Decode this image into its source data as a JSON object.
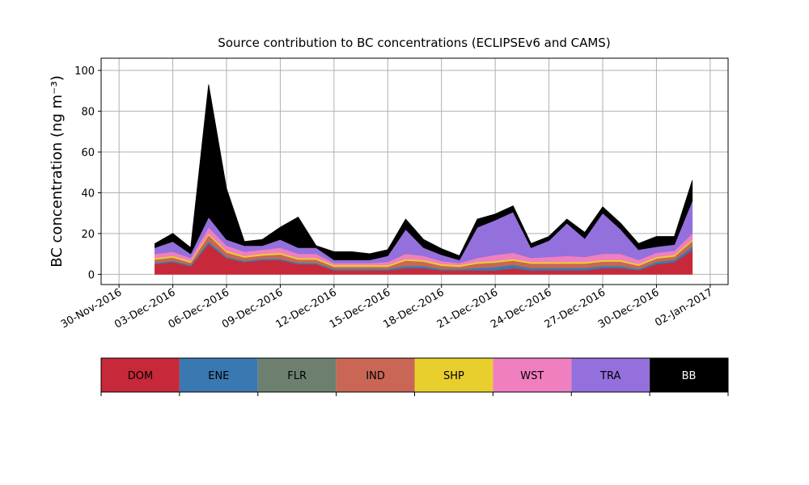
{
  "chart_data": {
    "type": "stacked_area",
    "title": "Source contribution to BC concentrations (ECLIPSEv6 and CAMS)",
    "y_label": "BC concentration (ng m⁻³)",
    "x": [
      "02-Dec-2016",
      "03-Dec-2016",
      "04-Dec-2016",
      "05-Dec-2016",
      "06-Dec-2016",
      "07-Dec-2016",
      "08-Dec-2016",
      "09-Dec-2016",
      "10-Dec-2016",
      "11-Dec-2016",
      "12-Dec-2016",
      "13-Dec-2016",
      "14-Dec-2016",
      "15-Dec-2016",
      "16-Dec-2016",
      "17-Dec-2016",
      "18-Dec-2016",
      "19-Dec-2016",
      "20-Dec-2016",
      "21-Dec-2016",
      "22-Dec-2016",
      "23-Dec-2016",
      "24-Dec-2016",
      "25-Dec-2016",
      "26-Dec-2016",
      "27-Dec-2016",
      "28-Dec-2016",
      "29-Dec-2016",
      "30-Dec-2016",
      "31-Dec-2016",
      "01-Jan-2017"
    ],
    "series": [
      {
        "name": "DOM",
        "color": "#c7293a",
        "values": [
          5,
          6,
          4,
          15,
          8,
          6,
          7,
          7,
          5,
          5,
          2,
          2,
          2,
          2,
          3,
          3,
          2,
          2,
          2,
          2,
          3,
          2,
          2,
          2,
          2,
          3,
          3,
          2,
          5,
          6,
          12
        ]
      },
      {
        "name": "ENE",
        "color": "#3a78b1",
        "values": [
          0.5,
          0.5,
          0.5,
          1,
          0.5,
          0.5,
          0.5,
          0.5,
          0.5,
          0.5,
          0.5,
          0.5,
          0.5,
          0.5,
          1,
          1,
          0.5,
          0.5,
          1,
          1.5,
          1.5,
          1,
          1,
          1,
          1,
          1,
          1,
          0.5,
          1,
          1,
          1.5
        ]
      },
      {
        "name": "FLR",
        "color": "#6d8070",
        "values": [
          0.3,
          0.3,
          0.3,
          0.3,
          0.3,
          0.3,
          0.3,
          0.3,
          0.3,
          0.3,
          0.3,
          0.3,
          0.3,
          0.3,
          0.3,
          0.3,
          0.3,
          0.3,
          0.3,
          0.3,
          0.3,
          0.3,
          0.3,
          0.3,
          0.3,
          0.3,
          0.3,
          0.3,
          0.3,
          0.3,
          0.3
        ]
      },
      {
        "name": "IND",
        "color": "#c96656",
        "values": [
          1.5,
          1.5,
          1,
          3,
          2,
          1.5,
          1.5,
          2,
          1.5,
          1.5,
          1,
          1,
          1,
          1,
          2.5,
          2,
          1.5,
          1,
          2,
          2,
          2,
          2,
          2,
          2,
          2,
          2,
          2,
          1.5,
          1.5,
          1.5,
          2.5
        ]
      },
      {
        "name": "SHP",
        "color": "#e8cf2e",
        "values": [
          0.8,
          0.8,
          0.8,
          0.8,
          0.8,
          0.8,
          0.8,
          0.8,
          0.8,
          0.8,
          0.8,
          0.8,
          0.8,
          0.8,
          0.8,
          0.8,
          0.8,
          0.8,
          0.8,
          0.8,
          0.8,
          0.8,
          0.8,
          0.8,
          0.8,
          0.8,
          0.8,
          0.8,
          0.8,
          0.8,
          0.8
        ]
      },
      {
        "name": "WST",
        "color": "#f07fbf",
        "values": [
          2,
          2,
          1.5,
          3,
          2.5,
          2,
          2,
          2.5,
          2,
          2,
          1,
          1,
          1,
          1.5,
          2.5,
          2,
          1.5,
          1,
          2,
          3,
          3,
          2,
          2.5,
          3,
          2.5,
          3,
          3,
          2,
          2,
          2,
          3
        ]
      },
      {
        "name": "TRA",
        "color": "#9470dc",
        "values": [
          3,
          5,
          2,
          5,
          3,
          3,
          2,
          4,
          3,
          3,
          1.5,
          1.5,
          1.5,
          3,
          12,
          4,
          3,
          1.5,
          15,
          17,
          20,
          5,
          8,
          16,
          9,
          20,
          12,
          5,
          3,
          3,
          16
        ]
      },
      {
        "name": "BB",
        "color": "#000000",
        "values": [
          2,
          4,
          3,
          65,
          25,
          2,
          3,
          6,
          15,
          1,
          4,
          4,
          3,
          3,
          5,
          4,
          3,
          2,
          4,
          3,
          3,
          2,
          2,
          2,
          3,
          3,
          3,
          3,
          5,
          4,
          10
        ]
      }
    ],
    "xlim": [
      "29-Nov-2016",
      "03-Jan-2017"
    ],
    "xticks": [
      "30-Nov-2016",
      "03-Dec-2016",
      "06-Dec-2016",
      "09-Dec-2016",
      "12-Dec-2016",
      "15-Dec-2016",
      "18-Dec-2016",
      "21-Dec-2016",
      "24-Dec-2016",
      "27-Dec-2016",
      "30-Dec-2016",
      "02-Jan-2017"
    ],
    "ylim": [
      -5,
      106
    ],
    "yticks": [
      0,
      20,
      40,
      60,
      80,
      100
    ],
    "grid": true
  }
}
